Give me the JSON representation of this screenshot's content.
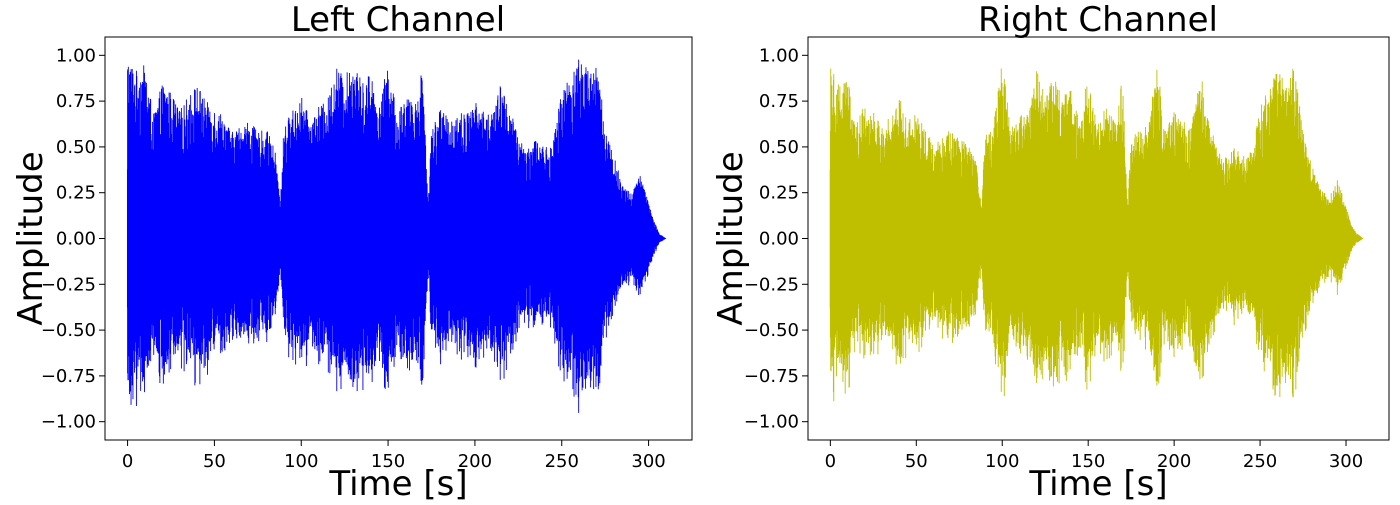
{
  "chart_data": [
    {
      "type": "line",
      "title": "Left Channel",
      "xlabel": "Time [s]",
      "ylabel": "Amplitude",
      "xlim": [
        -13,
        325
      ],
      "ylim": [
        -1.1,
        1.1
      ],
      "xticks": [
        "0",
        "50",
        "100",
        "150",
        "200",
        "250",
        "300"
      ],
      "yticks": [
        "−1.00",
        "−0.75",
        "−0.50",
        "−0.25",
        "0.00",
        "0.25",
        "0.50",
        "0.75",
        "1.00"
      ],
      "grid": false,
      "series": [
        {
          "color": "#0000ff",
          "envelope": {
            "x": [
              0,
              5,
              10,
              15,
              20,
              25,
              30,
              35,
              40,
              45,
              50,
              55,
              60,
              65,
              70,
              75,
              80,
              85,
              88,
              90,
              95,
              100,
              105,
              110,
              115,
              120,
              125,
              130,
              135,
              140,
              145,
              150,
              155,
              160,
              165,
              170,
              173,
              175,
              180,
              185,
              190,
              195,
              200,
              205,
              210,
              215,
              220,
              225,
              230,
              235,
              240,
              245,
              250,
              255,
              260,
              265,
              270,
              275,
              280,
              285,
              290,
              295,
              300,
              303,
              306,
              310
            ],
            "y": [
              1.0,
              0.92,
              0.95,
              0.68,
              0.85,
              0.8,
              0.7,
              0.78,
              0.85,
              0.75,
              0.72,
              0.68,
              0.58,
              0.62,
              0.65,
              0.58,
              0.6,
              0.48,
              0.2,
              0.62,
              0.7,
              0.78,
              0.65,
              0.72,
              0.75,
              0.95,
              0.88,
              0.98,
              0.85,
              0.92,
              0.72,
              0.98,
              0.68,
              0.8,
              0.72,
              0.95,
              0.2,
              0.6,
              0.72,
              0.65,
              0.7,
              0.68,
              0.75,
              0.7,
              0.68,
              0.85,
              0.72,
              0.55,
              0.5,
              0.55,
              0.5,
              0.52,
              0.82,
              0.9,
              1.0,
              0.92,
              0.98,
              0.62,
              0.45,
              0.3,
              0.25,
              0.35,
              0.2,
              0.1,
              0.03,
              0.0
            ]
          }
        }
      ]
    },
    {
      "type": "line",
      "title": "Right Channel",
      "xlabel": "Time [s]",
      "ylabel": "Amplitude",
      "xlim": [
        -13,
        325
      ],
      "ylim": [
        -1.1,
        1.1
      ],
      "xticks": [
        "0",
        "50",
        "100",
        "150",
        "200",
        "250",
        "300"
      ],
      "yticks": [
        "−1.00",
        "−0.75",
        "−0.50",
        "−0.25",
        "0.00",
        "0.25",
        "0.50",
        "0.75",
        "1.00"
      ],
      "grid": false,
      "series": [
        {
          "color": "#bfbf00",
          "envelope": {
            "x": [
              0,
              5,
              10,
              15,
              20,
              25,
              30,
              35,
              40,
              45,
              50,
              55,
              60,
              65,
              70,
              75,
              80,
              85,
              88,
              90,
              95,
              100,
              105,
              110,
              115,
              120,
              125,
              130,
              135,
              140,
              145,
              150,
              155,
              160,
              165,
              170,
              173,
              175,
              180,
              185,
              190,
              195,
              200,
              205,
              210,
              215,
              220,
              225,
              230,
              235,
              240,
              245,
              250,
              255,
              260,
              265,
              270,
              275,
              280,
              285,
              290,
              295,
              300,
              303,
              306,
              310
            ],
            "y": [
              1.0,
              0.85,
              0.9,
              0.62,
              0.75,
              0.7,
              0.6,
              0.68,
              0.8,
              0.65,
              0.68,
              0.6,
              0.52,
              0.58,
              0.6,
              0.55,
              0.52,
              0.42,
              0.18,
              0.58,
              0.62,
              0.98,
              0.6,
              0.68,
              0.7,
              0.92,
              0.82,
              0.9,
              0.78,
              0.85,
              0.65,
              0.9,
              0.62,
              0.72,
              0.65,
              0.88,
              0.18,
              0.55,
              0.65,
              0.6,
              0.98,
              0.6,
              0.7,
              0.65,
              0.6,
              0.95,
              0.65,
              0.5,
              0.45,
              0.5,
              0.45,
              0.48,
              0.72,
              0.82,
              0.92,
              0.85,
              0.95,
              0.58,
              0.4,
              0.28,
              0.22,
              0.32,
              0.18,
              0.08,
              0.03,
              0.0
            ]
          }
        }
      ]
    }
  ]
}
